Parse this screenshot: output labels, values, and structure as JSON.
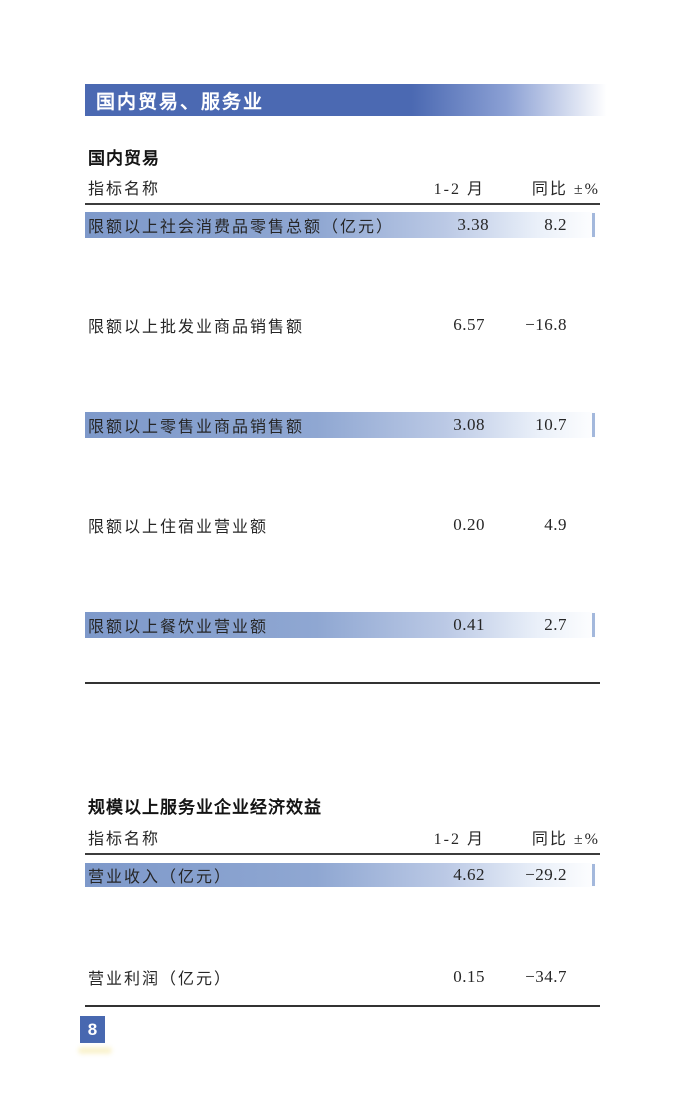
{
  "banner": {
    "title": "国内贸易、服务业"
  },
  "page_number": "8",
  "tables": [
    {
      "section_title": "国内贸易",
      "columns": [
        "指标名称",
        "1-2 月",
        "同比 ±%"
      ],
      "rows": [
        {
          "label": "限额以上社会消费品零售总额（亿元）",
          "value": "3.38",
          "yoy": "8.2",
          "highlighted": true
        },
        {
          "label": "限额以上批发业商品销售额",
          "value": "6.57",
          "yoy": "−16.8",
          "highlighted": false
        },
        {
          "label": "限额以上零售业商品销售额",
          "value": "3.08",
          "yoy": "10.7",
          "highlighted": true
        },
        {
          "label": "限额以上住宿业营业额",
          "value": "0.20",
          "yoy": "4.9",
          "highlighted": false
        },
        {
          "label": "限额以上餐饮业营业额",
          "value": "0.41",
          "yoy": "2.7",
          "highlighted": true
        }
      ]
    },
    {
      "section_title": "规模以上服务业企业经济效益",
      "columns": [
        "指标名称",
        "1-2 月",
        "同比 ±%"
      ],
      "rows": [
        {
          "label": "营业收入（亿元）",
          "value": "4.62",
          "yoy": "−29.2",
          "highlighted": true
        },
        {
          "label": "营业利润（亿元）",
          "value": "0.15",
          "yoy": "−34.7",
          "highlighted": false
        }
      ]
    }
  ],
  "colors": {
    "banner_blue": "#4B69B2",
    "highlight_blue": "#7E99CA",
    "tick_blue": "#A3B8DC",
    "page_number_blue": "#4868B0"
  }
}
